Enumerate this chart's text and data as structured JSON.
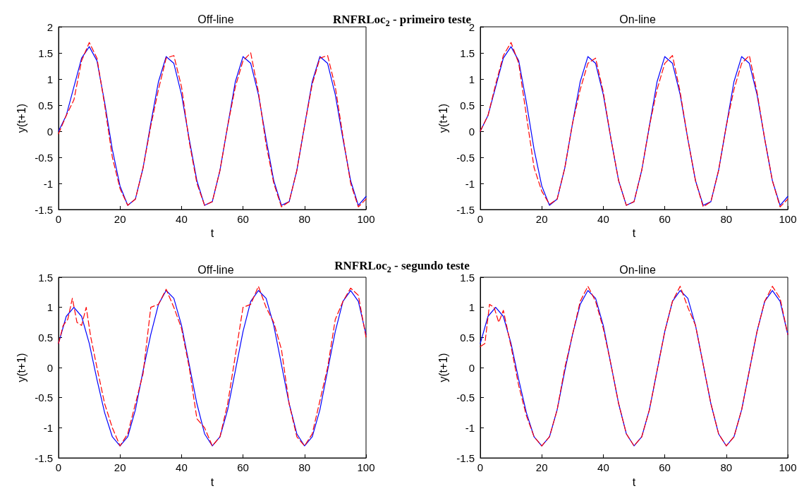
{
  "chart_data": [
    {
      "type": "line",
      "title": "Off-line",
      "subtitle": "RNFRLoc$_{2}$ - primeiro teste",
      "xlabel": "t",
      "ylabel": "y(t+1)",
      "xlim": [
        0,
        100
      ],
      "xticks": [
        0,
        20,
        40,
        60,
        80,
        100
      ],
      "ylim": [
        -1.5,
        2
      ],
      "yticks": [
        -1.5,
        -1,
        -0.5,
        0,
        0.5,
        1,
        1.5,
        2
      ],
      "grid": false,
      "series": [
        {
          "color": "#0000ff",
          "line_style": "solid",
          "x": [
            0,
            2.5,
            5,
            7.5,
            10,
            12.5,
            15,
            17.5,
            20,
            22.5,
            25,
            27.5,
            30,
            32.5,
            35,
            37.5,
            40,
            42.5,
            45,
            47.5,
            50,
            52.5,
            55,
            57.5,
            60,
            62.5,
            65,
            67.5,
            70,
            72.5,
            75,
            77.5,
            80,
            82.5,
            85,
            87.5,
            90,
            92.5,
            95,
            97.5,
            100
          ],
          "values": [
            0,
            0.3,
            0.85,
            1.4,
            1.62,
            1.35,
            0.55,
            -0.35,
            -1.05,
            -1.42,
            -1.3,
            -0.7,
            0.15,
            0.95,
            1.43,
            1.3,
            0.7,
            -0.15,
            -0.95,
            -1.42,
            -1.35,
            -0.75,
            0.1,
            0.95,
            1.43,
            1.3,
            0.7,
            -0.15,
            -0.95,
            -1.42,
            -1.35,
            -0.75,
            0.1,
            0.95,
            1.43,
            1.3,
            0.7,
            -0.15,
            -0.95,
            -1.42,
            -1.25
          ]
        },
        {
          "color": "#ff0000",
          "line_style": "dashed",
          "x": [
            0,
            2.5,
            5,
            7.5,
            10,
            12.5,
            15,
            17.5,
            20,
            22.5,
            25,
            27.5,
            30,
            32.5,
            35,
            37.5,
            40,
            42.5,
            45,
            47.5,
            50,
            52.5,
            55,
            57.5,
            60,
            62.5,
            65,
            67.5,
            70,
            72.5,
            75,
            77.5,
            80,
            82.5,
            85,
            87.5,
            90,
            92.5,
            95,
            97.5,
            100
          ],
          "values": [
            -0.05,
            0.3,
            0.6,
            1.35,
            1.7,
            1.4,
            0.5,
            -0.5,
            -1.1,
            -1.42,
            -1.3,
            -0.7,
            0.1,
            0.8,
            1.4,
            1.45,
            0.85,
            -0.2,
            -1,
            -1.42,
            -1.35,
            -0.75,
            0.1,
            0.85,
            1.35,
            1.5,
            0.75,
            -0.25,
            -1,
            -1.45,
            -1.35,
            -0.75,
            0.1,
            0.9,
            1.4,
            1.45,
            0.85,
            -0.1,
            -1,
            -1.45,
            -1.3
          ]
        }
      ]
    },
    {
      "type": "line",
      "title": "On-line",
      "xlabel": "t",
      "ylabel": "y(t+1)",
      "xlim": [
        0,
        100
      ],
      "xticks": [
        0,
        20,
        40,
        60,
        80,
        100
      ],
      "ylim": [
        -1.5,
        2
      ],
      "yticks": [
        -1.5,
        -1,
        -0.5,
        0,
        0.5,
        1,
        1.5,
        2
      ],
      "grid": false,
      "series": [
        {
          "color": "#0000ff",
          "line_style": "solid",
          "x": [
            0,
            2.5,
            5,
            7.5,
            10,
            12.5,
            15,
            17.5,
            20,
            22.5,
            25,
            27.5,
            30,
            32.5,
            35,
            37.5,
            40,
            42.5,
            45,
            47.5,
            50,
            52.5,
            55,
            57.5,
            60,
            62.5,
            65,
            67.5,
            70,
            72.5,
            75,
            77.5,
            80,
            82.5,
            85,
            87.5,
            90,
            92.5,
            95,
            97.5,
            100
          ],
          "values": [
            0,
            0.3,
            0.85,
            1.4,
            1.62,
            1.35,
            0.55,
            -0.35,
            -1.05,
            -1.42,
            -1.3,
            -0.7,
            0.15,
            0.95,
            1.43,
            1.3,
            0.7,
            -0.15,
            -0.95,
            -1.42,
            -1.35,
            -0.75,
            0.1,
            0.95,
            1.43,
            1.3,
            0.7,
            -0.15,
            -0.95,
            -1.42,
            -1.35,
            -0.75,
            0.1,
            0.95,
            1.43,
            1.3,
            0.7,
            -0.15,
            -0.95,
            -1.42,
            -1.25
          ]
        },
        {
          "color": "#ff0000",
          "line_style": "dashed",
          "x": [
            0,
            2.5,
            5,
            7.5,
            10,
            12.5,
            15,
            17.5,
            20,
            22.5,
            25,
            27.5,
            30,
            32.5,
            35,
            37.5,
            40,
            42.5,
            45,
            47.5,
            50,
            52.5,
            55,
            57.5,
            60,
            62.5,
            65,
            67.5,
            70,
            72.5,
            75,
            77.5,
            80,
            82.5,
            85,
            87.5,
            90,
            92.5,
            95,
            97.5,
            100
          ],
          "values": [
            0,
            0.3,
            0.9,
            1.45,
            1.7,
            1.3,
            0.3,
            -0.7,
            -1.15,
            -1.4,
            -1.3,
            -0.7,
            0.15,
            0.8,
            1.3,
            1.4,
            0.75,
            -0.15,
            -0.95,
            -1.42,
            -1.35,
            -0.75,
            0.1,
            0.8,
            1.3,
            1.45,
            0.75,
            -0.15,
            -0.95,
            -1.45,
            -1.35,
            -0.75,
            0.1,
            0.8,
            1.3,
            1.45,
            0.75,
            -0.15,
            -0.95,
            -1.45,
            -1.3
          ]
        }
      ]
    },
    {
      "type": "line",
      "title": "Off-line",
      "subtitle": "RNFRLoc$_{2}$ - segundo teste",
      "xlabel": "t",
      "ylabel": "y(t+1)",
      "xlim": [
        0,
        100
      ],
      "xticks": [
        0,
        20,
        40,
        60,
        80,
        100
      ],
      "ylim": [
        -1.5,
        1.5
      ],
      "yticks": [
        -1.5,
        -1,
        -0.5,
        0,
        0.5,
        1,
        1.5
      ],
      "grid": false,
      "series": [
        {
          "color": "#0000ff",
          "line_style": "solid",
          "x": [
            0,
            2.5,
            5,
            7.5,
            10,
            12.5,
            15,
            17.5,
            20,
            22.5,
            25,
            27.5,
            30,
            32.5,
            35,
            37.5,
            40,
            42.5,
            45,
            47.5,
            50,
            52.5,
            55,
            57.5,
            60,
            62.5,
            65,
            67.5,
            70,
            72.5,
            75,
            77.5,
            80,
            82.5,
            85,
            87.5,
            90,
            92.5,
            95,
            97.5,
            100
          ],
          "values": [
            0.4,
            0.85,
            1,
            0.85,
            0.4,
            -0.2,
            -0.75,
            -1.15,
            -1.3,
            -1.15,
            -0.7,
            -0.05,
            0.55,
            1.05,
            1.28,
            1.15,
            0.7,
            0.05,
            -0.6,
            -1.1,
            -1.3,
            -1.15,
            -0.7,
            -0.05,
            0.6,
            1.1,
            1.28,
            1.15,
            0.7,
            0.05,
            -0.6,
            -1.1,
            -1.3,
            -1.15,
            -0.7,
            -0.05,
            0.6,
            1.1,
            1.28,
            1.1,
            0.55
          ]
        },
        {
          "color": "#ff0000",
          "line_style": "dashed",
          "x": [
            0,
            1.5,
            3,
            4.5,
            6,
            7.5,
            9,
            10.5,
            12.5,
            15,
            17.5,
            20,
            22.5,
            25,
            27.5,
            30,
            32.5,
            35,
            37.5,
            40,
            42.5,
            45,
            47.5,
            50,
            52.5,
            55,
            57.5,
            60,
            62.5,
            65,
            67.5,
            70,
            72.5,
            75,
            77.5,
            80,
            82.5,
            85,
            87.5,
            90,
            92.5,
            95,
            97.5,
            100
          ],
          "values": [
            0.4,
            0.7,
            0.8,
            1.15,
            0.75,
            0.7,
            1,
            0.5,
            0,
            -0.6,
            -1,
            -1.3,
            -1.1,
            -0.6,
            -0.1,
            1,
            1.05,
            1.3,
            1,
            0.65,
            0,
            -0.85,
            -1,
            -1.3,
            -1.15,
            -0.6,
            0.2,
            1,
            1.05,
            1.35,
            1,
            0.75,
            0.3,
            -0.6,
            -1.15,
            -1.3,
            -1.1,
            -0.55,
            0,
            0.8,
            1.1,
            1.32,
            1.2,
            0.5
          ]
        }
      ]
    },
    {
      "type": "line",
      "title": "On-line",
      "xlabel": "t",
      "ylabel": "y(t+1)",
      "xlim": [
        0,
        100
      ],
      "xticks": [
        0,
        20,
        40,
        60,
        80,
        100
      ],
      "ylim": [
        -1.5,
        1.5
      ],
      "yticks": [
        -1.5,
        -1,
        -0.5,
        0,
        0.5,
        1,
        1.5
      ],
      "grid": false,
      "series": [
        {
          "color": "#0000ff",
          "line_style": "solid",
          "x": [
            0,
            2.5,
            5,
            7.5,
            10,
            12.5,
            15,
            17.5,
            20,
            22.5,
            25,
            27.5,
            30,
            32.5,
            35,
            37.5,
            40,
            42.5,
            45,
            47.5,
            50,
            52.5,
            55,
            57.5,
            60,
            62.5,
            65,
            67.5,
            70,
            72.5,
            75,
            77.5,
            80,
            82.5,
            85,
            87.5,
            90,
            92.5,
            95,
            97.5,
            100
          ],
          "values": [
            0.4,
            0.85,
            1,
            0.85,
            0.4,
            -0.2,
            -0.75,
            -1.15,
            -1.3,
            -1.15,
            -0.7,
            -0.05,
            0.55,
            1.05,
            1.28,
            1.15,
            0.7,
            0.05,
            -0.6,
            -1.1,
            -1.3,
            -1.15,
            -0.7,
            -0.05,
            0.6,
            1.1,
            1.28,
            1.15,
            0.7,
            0.05,
            -0.6,
            -1.1,
            -1.3,
            -1.15,
            -0.7,
            -0.05,
            0.6,
            1.1,
            1.28,
            1.1,
            0.55
          ]
        },
        {
          "color": "#ff0000",
          "line_style": "dashed",
          "x": [
            0,
            1.5,
            3,
            4.5,
            6,
            7.5,
            10,
            12.5,
            15,
            17.5,
            20,
            22.5,
            25,
            27.5,
            30,
            32.5,
            35,
            37.5,
            40,
            42.5,
            45,
            47.5,
            50,
            52.5,
            55,
            57.5,
            60,
            62.5,
            65,
            67.5,
            70,
            72.5,
            75,
            77.5,
            80,
            82.5,
            85,
            87.5,
            90,
            92.5,
            95,
            97.5,
            100
          ],
          "values": [
            0.35,
            0.4,
            1.05,
            1,
            0.75,
            0.95,
            0.35,
            -0.3,
            -0.8,
            -1.15,
            -1.3,
            -1.15,
            -0.7,
            0,
            0.55,
            1.1,
            1.35,
            1.1,
            0.65,
            0.05,
            -0.6,
            -1.1,
            -1.3,
            -1.15,
            -0.7,
            -0.05,
            0.6,
            1.1,
            1.35,
            1,
            0.7,
            0.05,
            -0.6,
            -1.1,
            -1.3,
            -1.15,
            -0.7,
            -0.05,
            0.6,
            1.1,
            1.35,
            1.15,
            0.55
          ]
        }
      ]
    }
  ]
}
